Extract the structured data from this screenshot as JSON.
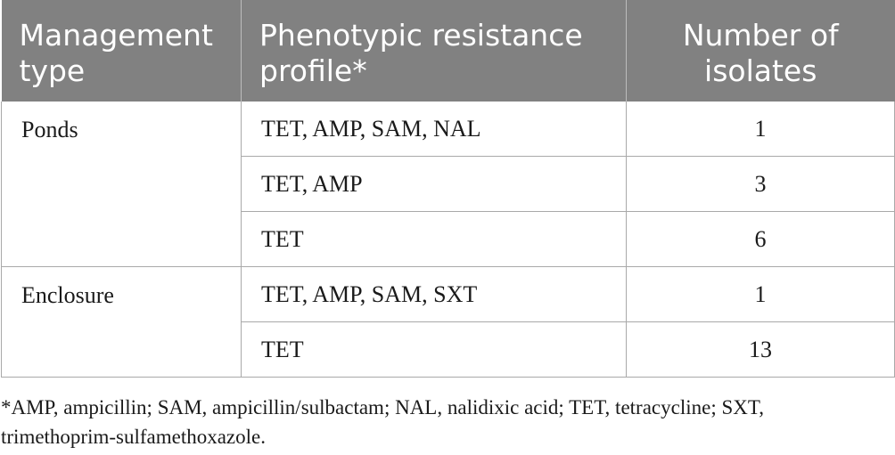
{
  "header": {
    "management_type": [
      "Management",
      "type"
    ],
    "profile": [
      "Phenotypic resistance",
      "profile*"
    ],
    "isolates": [
      "Number of",
      "isolates"
    ]
  },
  "groups": [
    {
      "management_type": "Ponds",
      "rows": [
        {
          "profile": "TET, AMP, SAM, NAL",
          "isolates": "1"
        },
        {
          "profile": "TET, AMP",
          "isolates": "3"
        },
        {
          "profile": "TET",
          "isolates": "6"
        }
      ]
    },
    {
      "management_type": "Enclosure",
      "rows": [
        {
          "profile": "TET, AMP, SAM, SXT",
          "isolates": "1"
        },
        {
          "profile": "TET",
          "isolates": "13"
        }
      ]
    }
  ],
  "footnote": {
    "line1": "*AMP, ampicillin; SAM, ampicillin/sulbactam; NAL, nalidixic acid; TET, tetracycline; SXT,",
    "line2": "trimethoprim-sulfamethoxazole."
  }
}
